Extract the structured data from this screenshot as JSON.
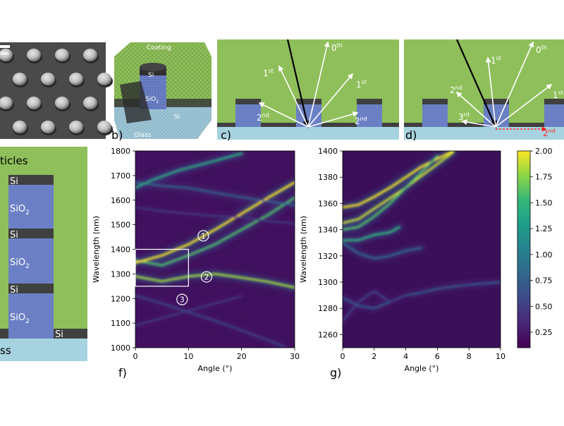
{
  "panels": {
    "a": {
      "scale_bar_label": "nm"
    },
    "b": {
      "letter": "b)",
      "labels": {
        "coating": "Coating",
        "si_top": "Si",
        "sio2": "SiO",
        "sio2_sub": "2",
        "si_bottom": "Si",
        "glass": "Glass"
      }
    },
    "c": {
      "letter": "c)",
      "orders": [
        {
          "base": "0",
          "sup": "th"
        },
        {
          "base": "1",
          "sup": "st"
        },
        {
          "base": "1",
          "sup": "st"
        },
        {
          "base": "2",
          "sup": "nd"
        },
        {
          "base": "2",
          "sup": "nd"
        }
      ]
    },
    "d": {
      "letter": "d)",
      "orders": [
        {
          "base": "0",
          "sup": "th"
        },
        {
          "base": "1",
          "sup": "st"
        },
        {
          "base": "1",
          "sup": "st"
        },
        {
          "base": "2",
          "sup": "nd"
        },
        {
          "base": "3",
          "sup": "rd"
        },
        {
          "base": "2",
          "sup": "nd"
        }
      ]
    },
    "e": {
      "title_fragment": "ticles",
      "layers": [
        "Si",
        "SiO",
        "Si",
        "SiO",
        "Si",
        "SiO",
        "Si"
      ],
      "sub": "2",
      "bottom": "ss"
    }
  },
  "chart_data": [
    {
      "panel": "f)",
      "type": "heatmap",
      "xlabel": "Angle (°)",
      "ylabel": "Wavelength (nm)",
      "xlim": [
        0,
        30
      ],
      "ylim": [
        1000,
        1800
      ],
      "x_ticks": [
        "0",
        "10",
        "20",
        "30"
      ],
      "y_ticks": [
        "1000",
        "1100",
        "1200",
        "1300",
        "1400",
        "1500",
        "1600",
        "1700",
        "1800"
      ],
      "inset_box": {
        "x": [
          0,
          10
        ],
        "y": [
          1250,
          1400
        ]
      },
      "markers": [
        {
          "label": "1",
          "angle": 12.8,
          "wavelength": 1455
        },
        {
          "label": "2",
          "angle": 13.4,
          "wavelength": 1288
        },
        {
          "label": "3",
          "angle": 8.8,
          "wavelength": 1196
        }
      ],
      "bands": [
        {
          "points": [
            [
              0,
              1355
            ],
            [
              5,
              1335
            ],
            [
              10,
              1375
            ],
            [
              15,
              1420
            ],
            [
              20,
              1480
            ],
            [
              25,
              1540
            ],
            [
              30,
              1610
            ]
          ],
          "peak": 1.6
        },
        {
          "points": [
            [
              0,
              1345
            ],
            [
              5,
              1375
            ],
            [
              10,
              1420
            ],
            [
              15,
              1480
            ],
            [
              20,
              1545
            ],
            [
              25,
              1610
            ],
            [
              30,
              1672
            ]
          ],
          "peak": 2.0
        },
        {
          "points": [
            [
              0,
              1290
            ],
            [
              5,
              1270
            ],
            [
              10,
              1290
            ],
            [
              15,
              1300
            ],
            [
              20,
              1285
            ],
            [
              25,
              1268
            ],
            [
              30,
              1245
            ]
          ],
          "peak": 1.8
        },
        {
          "points": [
            [
              0,
              1672
            ],
            [
              5,
              1658
            ],
            [
              10,
              1650
            ],
            [
              15,
              1630
            ],
            [
              20,
              1612
            ],
            [
              25,
              1595
            ],
            [
              30,
              1580
            ]
          ],
          "peak": 0.9
        },
        {
          "points": [
            [
              0,
              1570
            ],
            [
              5,
              1555
            ],
            [
              10,
              1545
            ],
            [
              15,
              1535
            ],
            [
              20,
              1530
            ],
            [
              25,
              1515
            ],
            [
              30,
              1505
            ]
          ],
          "peak": 0.5
        },
        {
          "points": [
            [
              0,
              1650
            ],
            [
              3,
              1680
            ],
            [
              8,
              1720
            ],
            [
              15,
              1760
            ],
            [
              20,
              1790
            ]
          ],
          "peak": 1.4
        },
        {
          "points": [
            [
              0,
              1212
            ],
            [
              5,
              1180
            ],
            [
              10,
              1145
            ],
            [
              15,
              1110
            ],
            [
              20,
              1070
            ],
            [
              25,
              1030
            ],
            [
              28,
              1005
            ]
          ],
          "peak": 0.6
        },
        {
          "points": [
            [
              0,
              1090
            ],
            [
              5,
              1120
            ],
            [
              10,
              1150
            ],
            [
              15,
              1180
            ],
            [
              20,
              1210
            ]
          ],
          "peak": 0.5
        }
      ],
      "colorscale": "viridis"
    },
    {
      "panel": "g)",
      "type": "heatmap",
      "xlabel": "Angle (°)",
      "ylabel": "Wavelength (nm)",
      "xlim": [
        0,
        10
      ],
      "ylim": [
        1250,
        1400
      ],
      "x_ticks": [
        "0",
        "2",
        "4",
        "6",
        "8",
        "10"
      ],
      "y_ticks": [
        "1260",
        "1280",
        "1300",
        "1320",
        "1340",
        "1360",
        "1380",
        "1400"
      ],
      "bands": [
        {
          "points": [
            [
              0,
              1357
            ],
            [
              1,
              1359
            ],
            [
              2,
              1365
            ],
            [
              3,
              1372
            ],
            [
              4,
              1380
            ],
            [
              5,
              1388
            ],
            [
              6,
              1394
            ],
            [
              7,
              1400
            ]
          ],
          "peak": 2.0
        },
        {
          "points": [
            [
              0,
              1345
            ],
            [
              1,
              1348
            ],
            [
              2,
              1356
            ],
            [
              3,
              1364
            ],
            [
              4,
              1372
            ],
            [
              5,
              1381
            ],
            [
              6,
              1390
            ],
            [
              7,
              1399
            ]
          ],
          "peak": 1.9
        },
        {
          "points": [
            [
              0,
              1340
            ],
            [
              1,
              1342
            ],
            [
              2,
              1350
            ],
            [
              3,
              1360
            ],
            [
              4,
              1372
            ],
            [
              5,
              1384
            ],
            [
              6,
              1396
            ]
          ],
          "peak": 1.6
        },
        {
          "points": [
            [
              0,
              1332
            ],
            [
              1,
              1332
            ],
            [
              2,
              1336
            ],
            [
              3,
              1338
            ],
            [
              3.6,
              1342
            ]
          ],
          "peak": 1.5
        },
        {
          "points": [
            [
              0,
              1330
            ],
            [
              1,
              1322
            ],
            [
              2,
              1318
            ],
            [
              3,
              1320
            ],
            [
              4,
              1324
            ],
            [
              5,
              1326
            ]
          ],
          "peak": 1.0
        },
        {
          "points": [
            [
              0,
              1288
            ],
            [
              1,
              1282
            ],
            [
              2,
              1280
            ],
            [
              3,
              1285
            ],
            [
              4,
              1290
            ],
            [
              5,
              1292
            ],
            [
              6,
              1295
            ],
            [
              8,
              1298
            ],
            [
              10,
              1300
            ]
          ],
          "peak": 0.8
        },
        {
          "points": [
            [
              0,
              1270
            ],
            [
              1,
              1285
            ],
            [
              2,
              1293
            ],
            [
              3,
              1285
            ],
            [
              4,
              1290
            ]
          ],
          "peak": 0.6
        }
      ],
      "colorbar": {
        "min": 0.1,
        "max": 2.0,
        "ticks": [
          "0.25",
          "0.50",
          "0.75",
          "1.00",
          "1.25",
          "1.50",
          "1.75",
          "2.00"
        ]
      }
    }
  ]
}
